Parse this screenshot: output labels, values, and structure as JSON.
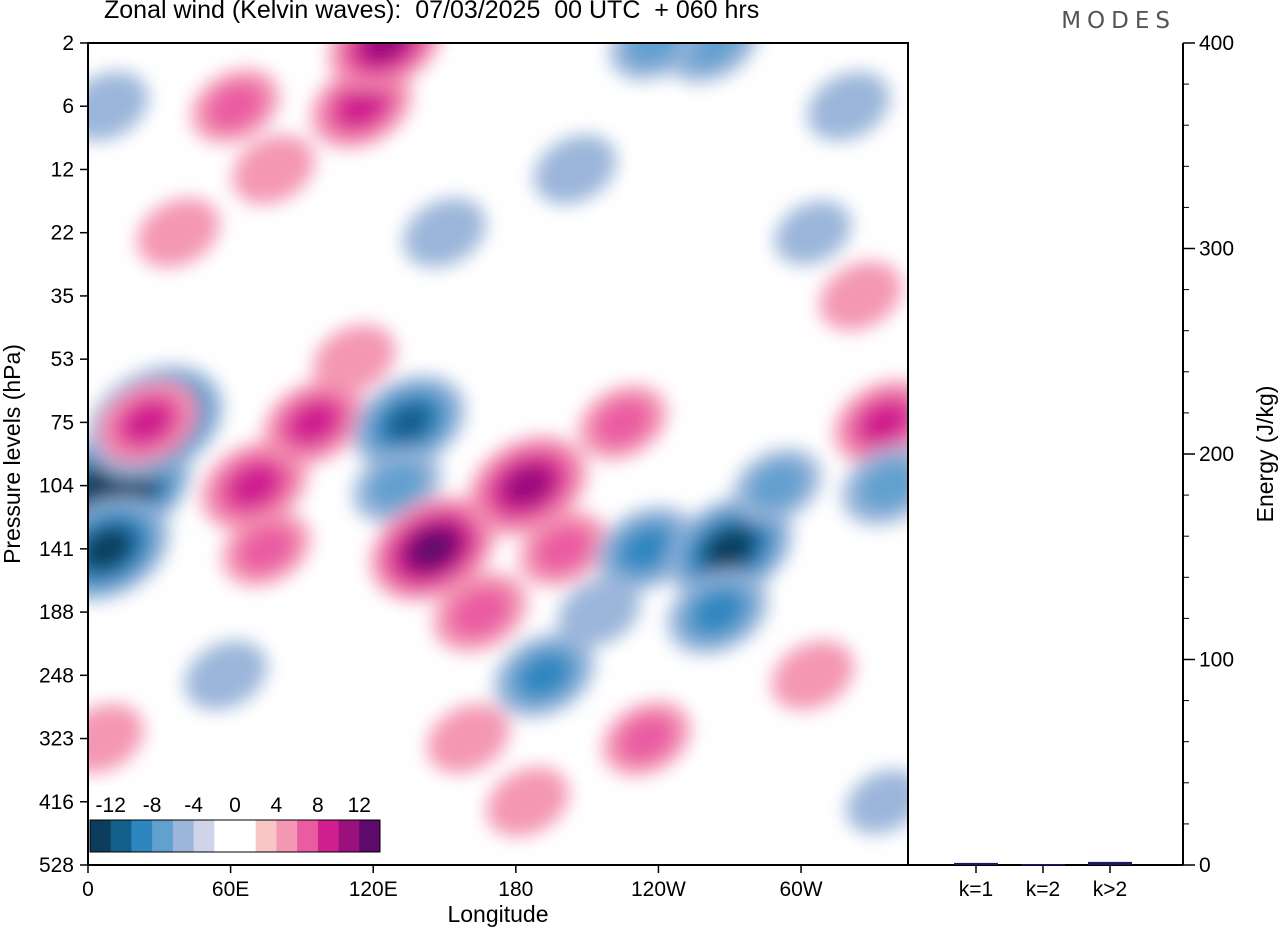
{
  "title": "Zonal wind (Kelvin waves):  07/03/2025  00 UTC  + 060 hrs",
  "brand": "MODES",
  "colors": {
    "neg": [
      "#0d3d5c",
      "#135f8c",
      "#2e86bf",
      "#62a0cf",
      "#9bb6da",
      "#d0d4e8"
    ],
    "pos": [
      "#f7c6c5",
      "#f497b4",
      "#ea5ca2",
      "#cf1f8e",
      "#9a117e",
      "#5e0a6c"
    ],
    "zero": "#ffffff"
  },
  "chart_data": [
    {
      "type": "heatmap",
      "xlabel": "Longitude",
      "ylabel": "Pressure levels (hPa)",
      "x_ticks": [
        "0",
        "60E",
        "120E",
        "180",
        "120W",
        "60W"
      ],
      "x_tick_values": [
        0,
        60,
        120,
        180,
        240,
        300
      ],
      "xlim": [
        0,
        345
      ],
      "y_ticks": [
        2,
        6,
        12,
        22,
        35,
        53,
        75,
        104,
        141,
        188,
        248,
        323,
        416,
        528
      ],
      "y_scale": "reversed, evenly spaced levels",
      "colorbar": {
        "labels": [
          "-12",
          "-8",
          "-4",
          "0",
          "4",
          "8",
          "12"
        ],
        "placement": "bottom-left, inside plot"
      },
      "features": [
        {
          "lon": 12,
          "p": 104,
          "value": -14
        },
        {
          "lon": 28,
          "p": 75,
          "value": -12
        },
        {
          "lon": 8,
          "p": 141,
          "value": -10
        },
        {
          "lon": 8,
          "p": 6,
          "value": -3
        },
        {
          "lon": 38,
          "p": 22,
          "value": 3
        },
        {
          "lon": 25,
          "p": 75,
          "value": 6
        },
        {
          "lon": 62,
          "p": 6,
          "value": 4
        },
        {
          "lon": 78,
          "p": 12,
          "value": 3
        },
        {
          "lon": 115,
          "p": 6,
          "value": 6
        },
        {
          "lon": 125,
          "p": 2,
          "value": 8
        },
        {
          "lon": 70,
          "p": 104,
          "value": 7
        },
        {
          "lon": 95,
          "p": 75,
          "value": 6
        },
        {
          "lon": 112,
          "p": 53,
          "value": 3
        },
        {
          "lon": 75,
          "p": 141,
          "value": 4
        },
        {
          "lon": 135,
          "p": 75,
          "value": -8
        },
        {
          "lon": 130,
          "p": 104,
          "value": -4
        },
        {
          "lon": 150,
          "p": 22,
          "value": -3
        },
        {
          "lon": 205,
          "p": 12,
          "value": -3
        },
        {
          "lon": 145,
          "p": 141,
          "value": 10
        },
        {
          "lon": 185,
          "p": 104,
          "value": 9
        },
        {
          "lon": 165,
          "p": 188,
          "value": 5
        },
        {
          "lon": 200,
          "p": 141,
          "value": 4
        },
        {
          "lon": 192,
          "p": 248,
          "value": -6
        },
        {
          "lon": 215,
          "p": 188,
          "value": -3
        },
        {
          "lon": 235,
          "p": 141,
          "value": -6
        },
        {
          "lon": 270,
          "p": 141,
          "value": -10
        },
        {
          "lon": 265,
          "p": 188,
          "value": -6
        },
        {
          "lon": 290,
          "p": 104,
          "value": -4
        },
        {
          "lon": 262,
          "p": 2,
          "value": -5
        },
        {
          "lon": 238,
          "p": 2,
          "value": -4
        },
        {
          "lon": 305,
          "p": 22,
          "value": -2
        },
        {
          "lon": 225,
          "p": 75,
          "value": 4
        },
        {
          "lon": 235,
          "p": 323,
          "value": 4
        },
        {
          "lon": 6,
          "p": 323,
          "value": 3
        },
        {
          "lon": 58,
          "p": 248,
          "value": -3
        },
        {
          "lon": 335,
          "p": 75,
          "value": 6
        },
        {
          "lon": 337,
          "p": 104,
          "value": -5
        },
        {
          "lon": 325,
          "p": 35,
          "value": 3
        },
        {
          "lon": 305,
          "p": 248,
          "value": 3
        },
        {
          "lon": 160,
          "p": 323,
          "value": 3
        },
        {
          "lon": 185,
          "p": 416,
          "value": 3
        },
        {
          "lon": 335,
          "p": 416,
          "value": -2
        },
        {
          "lon": 320,
          "p": 6,
          "value": -3
        }
      ]
    },
    {
      "type": "bar",
      "categories": [
        "k=1",
        "k=2",
        "k>2"
      ],
      "values": [
        1.0,
        0.5,
        1.5
      ],
      "ylabel": "Energy (J/kg)",
      "ylim": [
        0,
        400
      ],
      "y_ticks": [
        0,
        100,
        200,
        300,
        400
      ],
      "color": "#1a1a5e"
    }
  ]
}
